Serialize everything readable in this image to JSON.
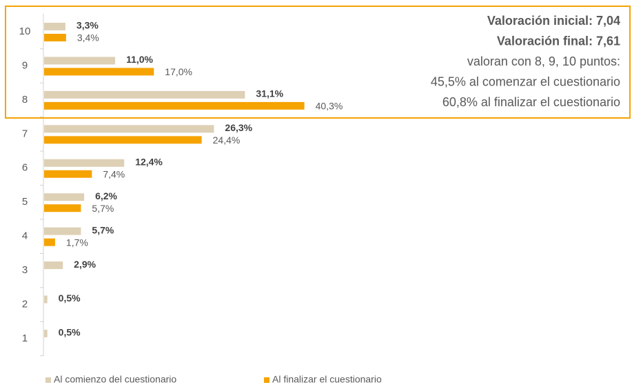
{
  "chart_data": {
    "type": "bar",
    "orientation": "horizontal",
    "categories": [
      "10",
      "9",
      "8",
      "7",
      "6",
      "5",
      "4",
      "3",
      "2",
      "1"
    ],
    "series": [
      {
        "name": "Al comienzo del cuestionario",
        "color": "#ddd0b5",
        "values": [
          3.3,
          11.0,
          31.1,
          26.3,
          12.4,
          6.2,
          5.7,
          2.9,
          0.5,
          0.5
        ],
        "value_labels": [
          "3,3%",
          "11,0%",
          "31,1%",
          "26,3%",
          "12,4%",
          "6,2%",
          "5,7%",
          "2,9%",
          "0,5%",
          "0,5%"
        ]
      },
      {
        "name": "Al finalizar el cuestionario",
        "color": "#f5a300",
        "values": [
          3.4,
          17.0,
          40.3,
          24.4,
          7.4,
          5.7,
          1.7,
          null,
          null,
          null
        ],
        "value_labels": [
          "3,4%",
          "17,0%",
          "40,3%",
          "24,4%",
          "7,4%",
          "5,7%",
          "1,7%",
          null,
          null,
          null
        ]
      }
    ],
    "annotations": [
      "Valoración inicial: 7,04",
      "Valoración final: 7,61",
      "valoran con 8, 9, 10 puntos:",
      "45,5% al comenzar el cuestionario",
      "60,8% al finalizar el cuestionario"
    ],
    "annotation_border_color": "#f5a300"
  }
}
